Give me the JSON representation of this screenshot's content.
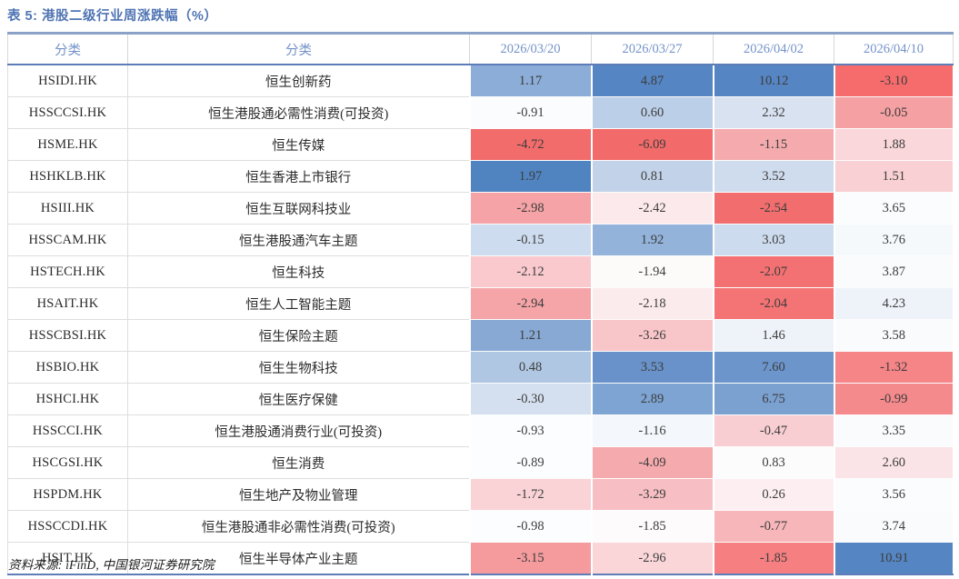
{
  "title": "表 5:  港股二级行业周涨跌幅（%）",
  "source": "资料来源: iFinD, 中国银河证券研究院",
  "accent_colors": {
    "title_blue": "#4f74b3",
    "header_text_blue": "#7392c8",
    "header_rule_blue": "#5d7cb8",
    "top_border": "#8ba2c8",
    "max_blue": "#5585c2",
    "min_red": "#f26a6a"
  },
  "table": {
    "headers": [
      "分类",
      "分类",
      "2026/03/20",
      "2026/03/27",
      "2026/04/02",
      "2026/04/10"
    ],
    "rows": [
      {
        "code": "HSIDI.HK",
        "name": "恒生创新药",
        "values": [
          "1.17",
          "4.87",
          "10.12",
          "-3.10"
        ],
        "colors": [
          "#8badd7",
          "#5585c2",
          "#5585c2",
          "#f66c6c"
        ]
      },
      {
        "code": "HSSCCSI.HK",
        "name": "恒生港股通必需性消费(可投资)",
        "values": [
          "-0.91",
          "0.60",
          "2.32",
          "-0.05"
        ],
        "colors": [
          "#fbfcfd",
          "#bccfe8",
          "#d8e2f1",
          "#f5a0a2"
        ]
      },
      {
        "code": "HSME.HK",
        "name": "恒生传媒",
        "values": [
          "-4.72",
          "-6.09",
          "-1.15",
          "1.88"
        ],
        "colors": [
          "#f26c6c",
          "#f26a6a",
          "#f5abae",
          "#fad7da"
        ]
      },
      {
        "code": "HSHKLB.HK",
        "name": "恒生香港上市银行",
        "values": [
          "1.97",
          "0.81",
          "3.52",
          "1.51"
        ],
        "colors": [
          "#5084c1",
          "#c2d3e9",
          "#cfdcee",
          "#f9d0d3"
        ]
      },
      {
        "code": "HSIII.HK",
        "name": "恒生互联网科技业",
        "values": [
          "-2.98",
          "-2.42",
          "-2.54",
          "3.65"
        ],
        "colors": [
          "#f5a3a6",
          "#fce9eb",
          "#f26e6e",
          "#fbfcfe"
        ]
      },
      {
        "code": "HSSCAM.HK",
        "name": "恒生港股通汽车主题",
        "values": [
          "-0.15",
          "1.92",
          "3.03",
          "3.76"
        ],
        "colors": [
          "#cedcef",
          "#93b3db",
          "#cddbee",
          "#f6f9fc"
        ]
      },
      {
        "code": "HSTECH.HK",
        "name": "恒生科技",
        "values": [
          "-2.12",
          "-1.94",
          "-2.07",
          "3.87"
        ],
        "colors": [
          "#f9c9cd",
          "#fdfafa",
          "#f37172",
          "#fafbfd"
        ]
      },
      {
        "code": "HSAIT.HK",
        "name": "恒生人工智能主题",
        "values": [
          "-2.94",
          "-2.18",
          "-2.04",
          "4.23"
        ],
        "colors": [
          "#f5a5a8",
          "#fcebed",
          "#f47374",
          "#eef3f9"
        ]
      },
      {
        "code": "HSSCBSI.HK",
        "name": "恒生保险主题",
        "values": [
          "1.21",
          "-3.26",
          "1.46",
          "3.58"
        ],
        "colors": [
          "#87a9d4",
          "#f8c6c9",
          "#eef2f9",
          "#f9fbfd"
        ]
      },
      {
        "code": "HSBIO.HK",
        "name": "恒生生物科技",
        "values": [
          "0.48",
          "3.53",
          "7.60",
          "-1.32"
        ],
        "colors": [
          "#b0c7e3",
          "#6892c9",
          "#6b95cb",
          "#f58587"
        ]
      },
      {
        "code": "HSHCI.HK",
        "name": "恒生医疗保健",
        "values": [
          "-0.30",
          "2.89",
          "6.75",
          "-0.99"
        ],
        "colors": [
          "#d4e0f0",
          "#7da4d2",
          "#7ba1d1",
          "#f58a8c"
        ]
      },
      {
        "code": "HSSCCI.HK",
        "name": "恒生港股通消费行业(可投资)",
        "values": [
          "-0.93",
          "-1.16",
          "-0.47",
          "3.35"
        ],
        "colors": [
          "#fcfdfe",
          "#f4f7fb",
          "#f8ced2",
          "#fafbfd"
        ]
      },
      {
        "code": "HSCGSI.HK",
        "name": "恒生消费",
        "values": [
          "-0.89",
          "-4.09",
          "0.83",
          "2.60"
        ],
        "colors": [
          "#fcfdfe",
          "#f5aaad",
          "#fdfcfd",
          "#fbe4e7"
        ]
      },
      {
        "code": "HSPDM.HK",
        "name": "恒生地产及物业管理",
        "values": [
          "-1.72",
          "-3.29",
          "0.26",
          "3.56"
        ],
        "colors": [
          "#fad3d6",
          "#f7bfc3",
          "#fdeff1",
          "#fafcfd"
        ]
      },
      {
        "code": "HSSCCDI.HK",
        "name": "恒生港股通非必需性消费(可投资)",
        "values": [
          "-0.98",
          "-1.85",
          "-0.77",
          "3.74"
        ],
        "colors": [
          "#fcfdfe",
          "#fdfbfb",
          "#f7b6b9",
          "#f9fbfd"
        ]
      },
      {
        "code": "HSIT.HK",
        "name": "恒生半导体产业主题",
        "values": [
          "-3.15",
          "-2.96",
          "-1.85",
          "10.91"
        ],
        "colors": [
          "#f59b9e",
          "#fad6d9",
          "#f57f81",
          "#5585c2"
        ]
      }
    ]
  }
}
